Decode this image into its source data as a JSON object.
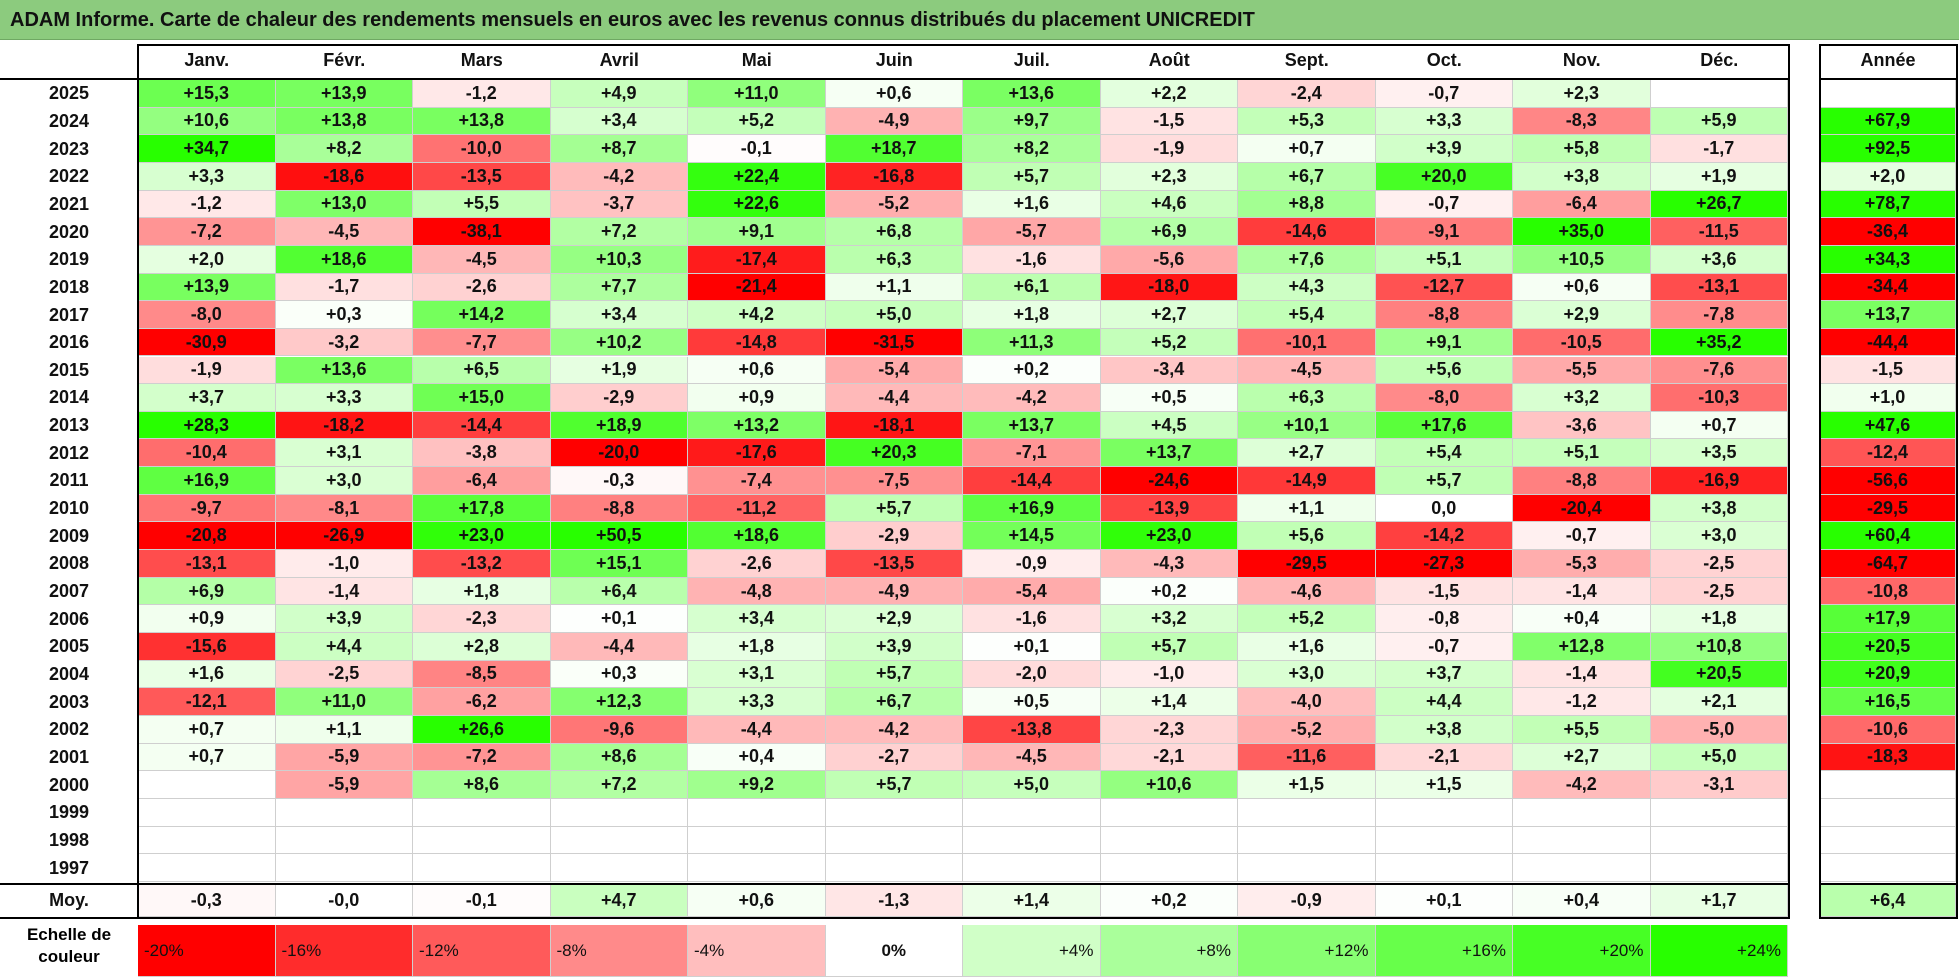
{
  "title": "ADAM Informe. Carte de chaleur des rendements mensuels en euros avec les revenus connus distribués du placement UNICREDIT",
  "chart_data": {
    "type": "heatmap",
    "title": "ADAM Informe. Carte de chaleur des rendements mensuels en euros avec les revenus connus distribués du placement UNICREDIT",
    "months": [
      "Janv.",
      "Févr.",
      "Mars",
      "Avril",
      "Mai",
      "Juin",
      "Juil.",
      "Août",
      "Sept.",
      "Oct.",
      "Nov.",
      "Déc."
    ],
    "year_column_label": "Année",
    "rows": [
      {
        "year": "2025",
        "values": [
          "+15,3",
          "+13,9",
          "-1,2",
          "+4,9",
          "+11,0",
          "+0,6",
          "+13,6",
          "+2,2",
          "-2,4",
          "-0,7",
          "+2,3",
          ""
        ],
        "annual": ""
      },
      {
        "year": "2024",
        "values": [
          "+10,6",
          "+13,8",
          "+13,8",
          "+3,4",
          "+5,2",
          "-4,9",
          "+9,7",
          "-1,5",
          "+5,3",
          "+3,3",
          "-8,3",
          "+5,9"
        ],
        "annual": "+67,9"
      },
      {
        "year": "2023",
        "values": [
          "+34,7",
          "+8,2",
          "-10,0",
          "+8,7",
          "-0,1",
          "+18,7",
          "+8,2",
          "-1,9",
          "+0,7",
          "+3,9",
          "+5,8",
          "-1,7"
        ],
        "annual": "+92,5"
      },
      {
        "year": "2022",
        "values": [
          "+3,3",
          "-18,6",
          "-13,5",
          "-4,2",
          "+22,4",
          "-16,8",
          "+5,7",
          "+2,3",
          "+6,7",
          "+20,0",
          "+3,8",
          "+1,9"
        ],
        "annual": "+2,0"
      },
      {
        "year": "2021",
        "values": [
          "-1,2",
          "+13,0",
          "+5,5",
          "-3,7",
          "+22,6",
          "-5,2",
          "+1,6",
          "+4,6",
          "+8,8",
          "-0,7",
          "-6,4",
          "+26,7"
        ],
        "annual": "+78,7"
      },
      {
        "year": "2020",
        "values": [
          "-7,2",
          "-4,5",
          "-38,1",
          "+7,2",
          "+9,1",
          "+6,8",
          "-5,7",
          "+6,9",
          "-14,6",
          "-9,1",
          "+35,0",
          "-11,5"
        ],
        "annual": "-36,4"
      },
      {
        "year": "2019",
        "values": [
          "+2,0",
          "+18,6",
          "-4,5",
          "+10,3",
          "-17,4",
          "+6,3",
          "-1,6",
          "-5,6",
          "+7,6",
          "+5,1",
          "+10,5",
          "+3,6"
        ],
        "annual": "+34,3"
      },
      {
        "year": "2018",
        "values": [
          "+13,9",
          "-1,7",
          "-2,6",
          "+7,7",
          "-21,4",
          "+1,1",
          "+6,1",
          "-18,0",
          "+4,3",
          "-12,7",
          "+0,6",
          "-13,1"
        ],
        "annual": "-34,4"
      },
      {
        "year": "2017",
        "values": [
          "-8,0",
          "+0,3",
          "+14,2",
          "+3,4",
          "+4,2",
          "+5,0",
          "+1,8",
          "+2,7",
          "+5,4",
          "-8,8",
          "+2,9",
          "-7,8"
        ],
        "annual": "+13,7"
      },
      {
        "year": "2016",
        "values": [
          "-30,9",
          "-3,2",
          "-7,7",
          "+10,2",
          "-14,8",
          "-31,5",
          "+11,3",
          "+5,2",
          "-10,1",
          "+9,1",
          "-10,5",
          "+35,2"
        ],
        "annual": "-44,4"
      },
      {
        "year": "2015",
        "values": [
          "-1,9",
          "+13,6",
          "+6,5",
          "+1,9",
          "+0,6",
          "-5,4",
          "+0,2",
          "-3,4",
          "-4,5",
          "+5,6",
          "-5,5",
          "-7,6"
        ],
        "annual": "-1,5"
      },
      {
        "year": "2014",
        "values": [
          "+3,7",
          "+3,3",
          "+15,0",
          "-2,9",
          "+0,9",
          "-4,4",
          "-4,2",
          "+0,5",
          "+6,3",
          "-8,0",
          "+3,2",
          "-10,3"
        ],
        "annual": "+1,0"
      },
      {
        "year": "2013",
        "values": [
          "+28,3",
          "-18,2",
          "-14,4",
          "+18,9",
          "+13,2",
          "-18,1",
          "+13,7",
          "+4,5",
          "+10,1",
          "+17,6",
          "-3,6",
          "+0,7"
        ],
        "annual": "+47,6"
      },
      {
        "year": "2012",
        "values": [
          "-10,4",
          "+3,1",
          "-3,8",
          "-20,0",
          "-17,6",
          "+20,3",
          "-7,1",
          "+13,7",
          "+2,7",
          "+5,4",
          "+5,1",
          "+3,5"
        ],
        "annual": "-12,4"
      },
      {
        "year": "2011",
        "values": [
          "+16,9",
          "+3,0",
          "-6,4",
          "-0,3",
          "-7,4",
          "-7,5",
          "-14,4",
          "-24,6",
          "-14,9",
          "+5,7",
          "-8,8",
          "-16,9"
        ],
        "annual": "-56,6"
      },
      {
        "year": "2010",
        "values": [
          "-9,7",
          "-8,1",
          "+17,8",
          "-8,8",
          "-11,2",
          "+5,7",
          "+16,9",
          "-13,9",
          "+1,1",
          "0,0",
          "-20,4",
          "+3,8"
        ],
        "annual": "-29,5"
      },
      {
        "year": "2009",
        "values": [
          "-20,8",
          "-26,9",
          "+23,0",
          "+50,5",
          "+18,6",
          "-2,9",
          "+14,5",
          "+23,0",
          "+5,6",
          "-14,2",
          "-0,7",
          "+3,0"
        ],
        "annual": "+60,4"
      },
      {
        "year": "2008",
        "values": [
          "-13,1",
          "-1,0",
          "-13,2",
          "+15,1",
          "-2,6",
          "-13,5",
          "-0,9",
          "-4,3",
          "-29,5",
          "-27,3",
          "-5,3",
          "-2,5"
        ],
        "annual": "-64,7"
      },
      {
        "year": "2007",
        "values": [
          "+6,9",
          "-1,4",
          "+1,8",
          "+6,4",
          "-4,8",
          "-4,9",
          "-5,4",
          "+0,2",
          "-4,6",
          "-1,5",
          "-1,4",
          "-2,5"
        ],
        "annual": "-10,8"
      },
      {
        "year": "2006",
        "values": [
          "+0,9",
          "+3,9",
          "-2,3",
          "+0,1",
          "+3,4",
          "+2,9",
          "-1,6",
          "+3,2",
          "+5,2",
          "-0,8",
          "+0,4",
          "+1,8"
        ],
        "annual": "+17,9"
      },
      {
        "year": "2005",
        "values": [
          "-15,6",
          "+4,4",
          "+2,8",
          "-4,4",
          "+1,8",
          "+3,9",
          "+0,1",
          "+5,7",
          "+1,6",
          "-0,7",
          "+12,8",
          "+10,8"
        ],
        "annual": "+20,5"
      },
      {
        "year": "2004",
        "values": [
          "+1,6",
          "-2,5",
          "-8,5",
          "+0,3",
          "+3,1",
          "+5,7",
          "-2,0",
          "-1,0",
          "+3,0",
          "+3,7",
          "-1,4",
          "+20,5"
        ],
        "annual": "+20,9"
      },
      {
        "year": "2003",
        "values": [
          "-12,1",
          "+11,0",
          "-6,2",
          "+12,3",
          "+3,3",
          "+6,7",
          "+0,5",
          "+1,4",
          "-4,0",
          "+4,4",
          "-1,2",
          "+2,1"
        ],
        "annual": "+16,5"
      },
      {
        "year": "2002",
        "values": [
          "+0,7",
          "+1,1",
          "+26,6",
          "-9,6",
          "-4,4",
          "-4,2",
          "-13,8",
          "-2,3",
          "-5,2",
          "+3,8",
          "+5,5",
          "-5,0"
        ],
        "annual": "-10,6"
      },
      {
        "year": "2001",
        "values": [
          "+0,7",
          "-5,9",
          "-7,2",
          "+8,6",
          "+0,4",
          "-2,7",
          "-4,5",
          "-2,1",
          "-11,6",
          "-2,1",
          "+2,7",
          "+5,0"
        ],
        "annual": "-18,3"
      },
      {
        "year": "2000",
        "values": [
          "",
          "-5,9",
          "+8,6",
          "+7,2",
          "+9,2",
          "+5,7",
          "+5,0",
          "+10,6",
          "+1,5",
          "+1,5",
          "-4,2",
          "-3,1"
        ],
        "annual": ""
      },
      {
        "year": "1999",
        "values": [
          "",
          "",
          "",
          "",
          "",
          "",
          "",
          "",
          "",
          "",
          "",
          ""
        ],
        "annual": ""
      },
      {
        "year": "1998",
        "values": [
          "",
          "",
          "",
          "",
          "",
          "",
          "",
          "",
          "",
          "",
          "",
          ""
        ],
        "annual": ""
      },
      {
        "year": "1997",
        "values": [
          "",
          "",
          "",
          "",
          "",
          "",
          "",
          "",
          "",
          "",
          "",
          ""
        ],
        "annual": ""
      }
    ],
    "average": {
      "label": "Moy.",
      "values": [
        "-0,3",
        "-0,0",
        "-0,1",
        "+4,7",
        "+0,6",
        "-1,3",
        "+1,4",
        "+0,2",
        "-0,9",
        "+0,1",
        "+0,4",
        "+1,7"
      ],
      "annual": "+6,4"
    },
    "color_scale": {
      "label": "Echelle de couleur",
      "steps": [
        {
          "label": "-20%",
          "value": -20
        },
        {
          "label": "-16%",
          "value": -16
        },
        {
          "label": "-12%",
          "value": -12
        },
        {
          "label": "-8%",
          "value": -8
        },
        {
          "label": "-4%",
          "value": -4
        },
        {
          "label": "0%",
          "value": 0
        },
        {
          "label": "+4%",
          "value": 4
        },
        {
          "label": "+8%",
          "value": 8
        },
        {
          "label": "+12%",
          "value": 12
        },
        {
          "label": "+16%",
          "value": 16
        },
        {
          "label": "+20%",
          "value": 20
        },
        {
          "label": "+24%",
          "value": 24
        }
      ],
      "negative_color": "#ff0000",
      "neutral_color": "#ffffff",
      "positive_color": "#00ff00"
    }
  }
}
